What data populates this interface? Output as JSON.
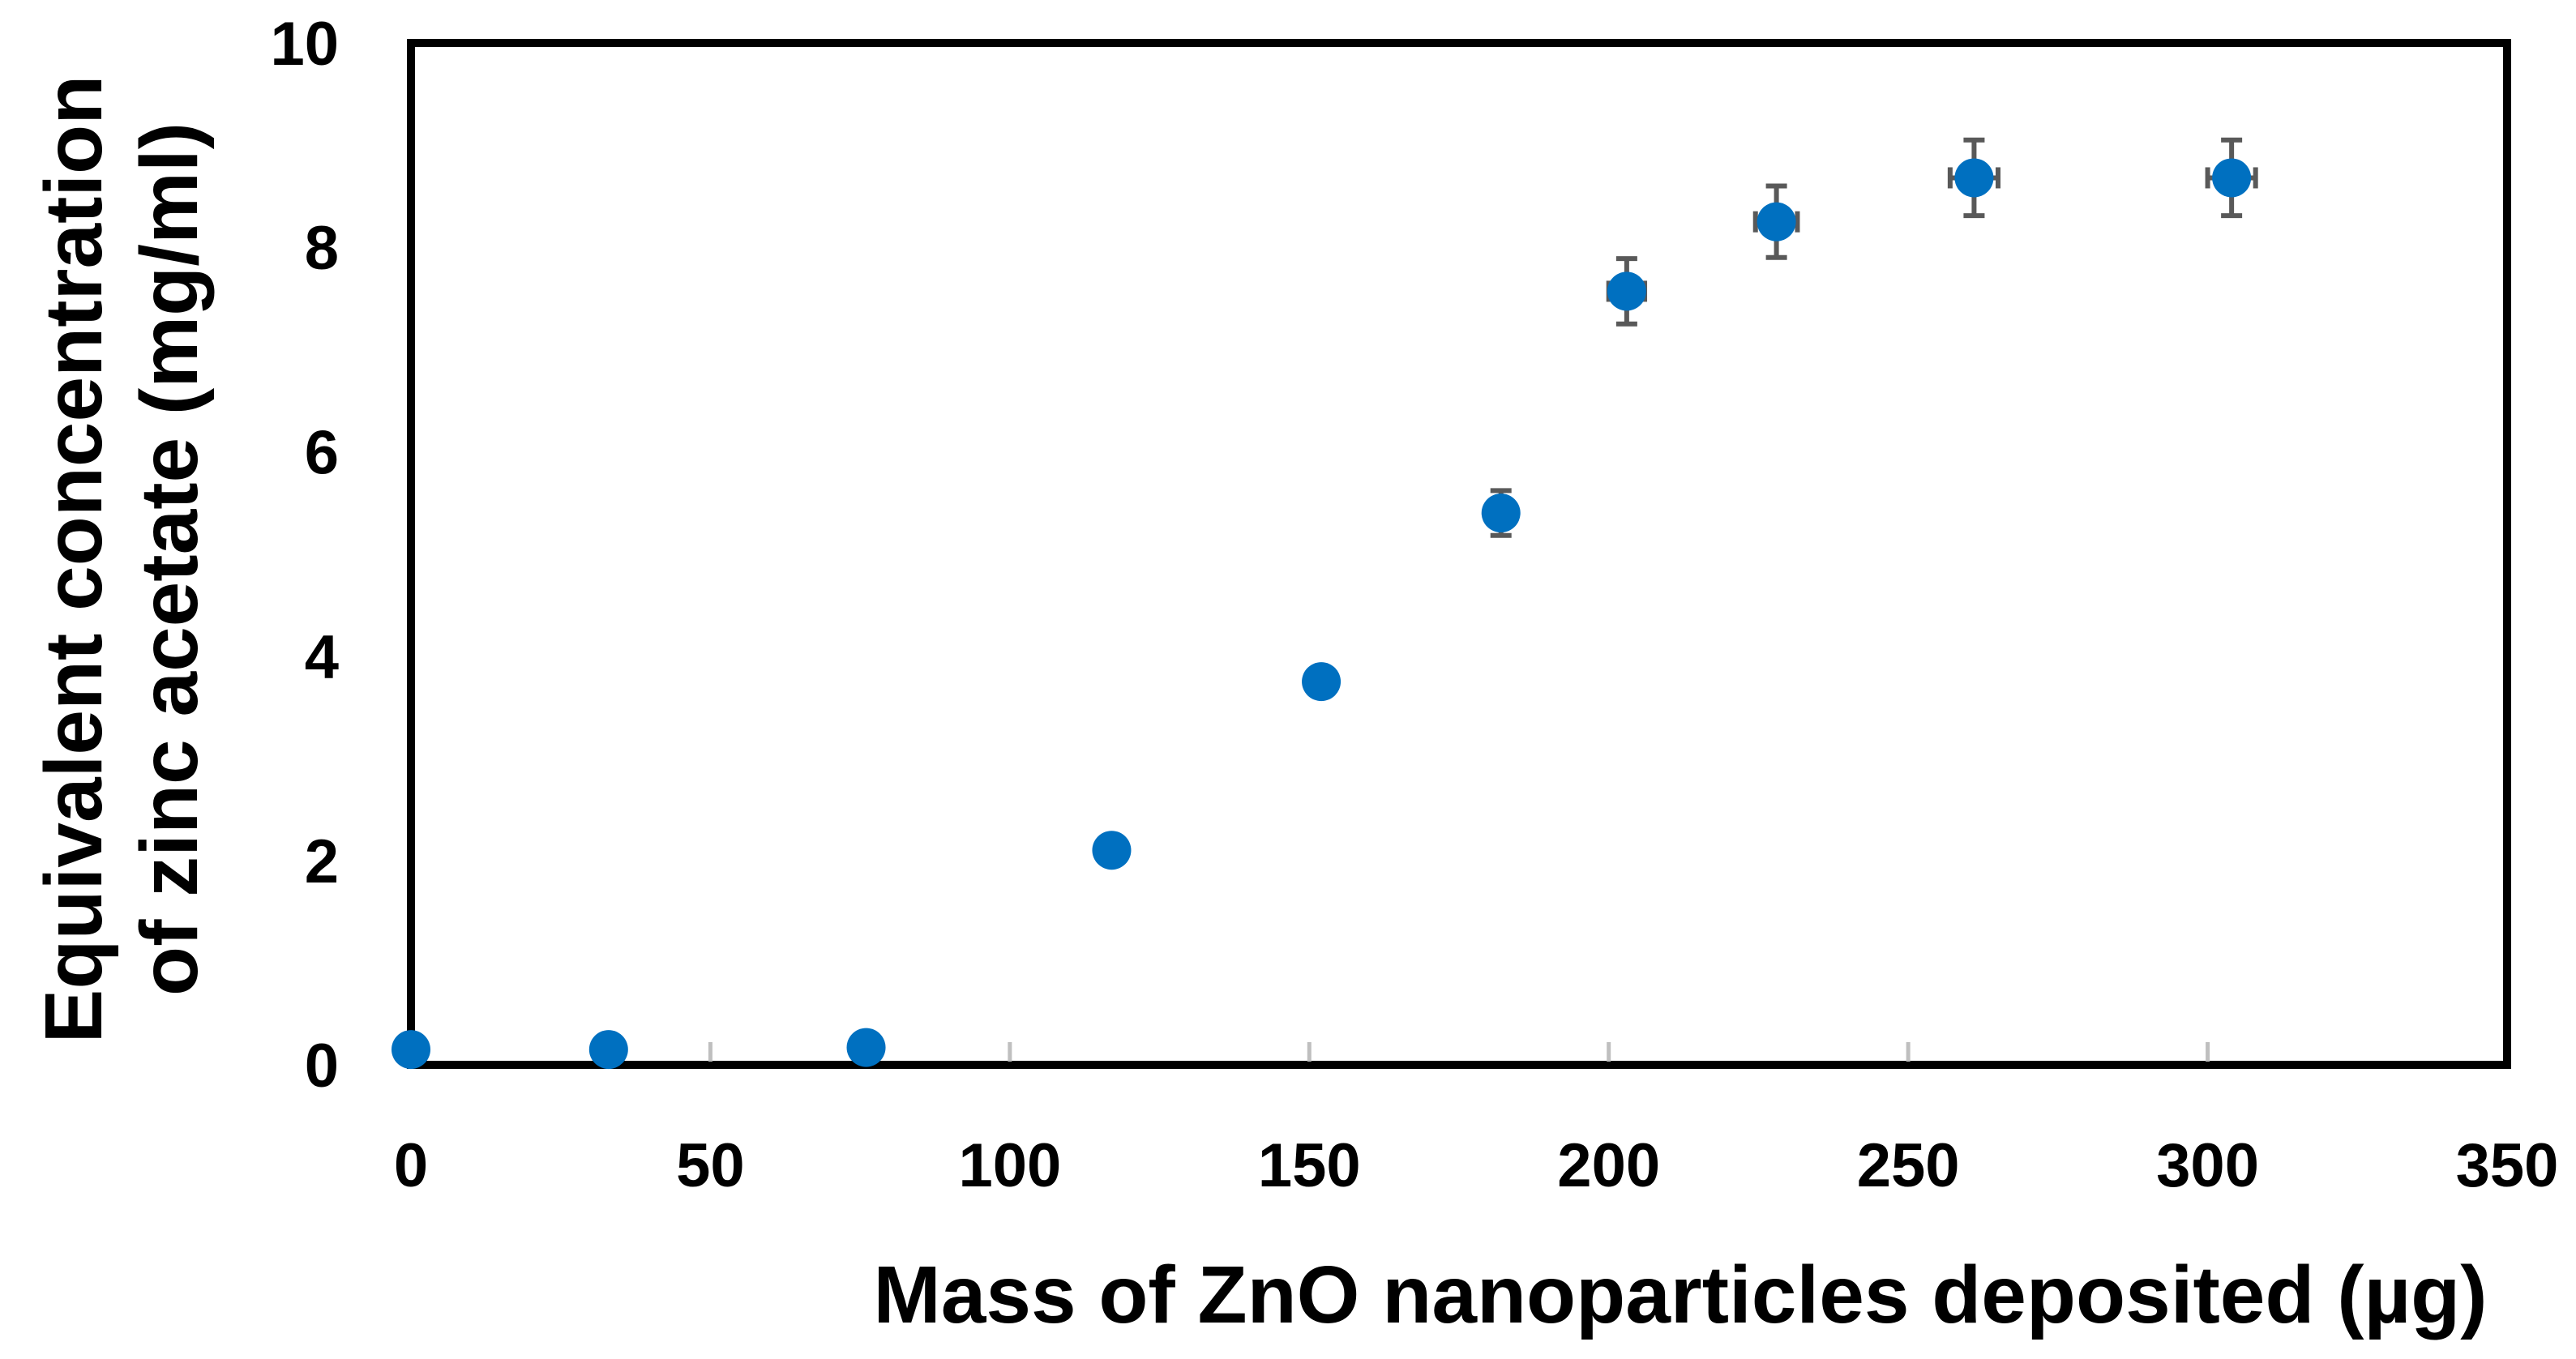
{
  "chart_data": {
    "type": "scatter",
    "title": "",
    "xlabel": "Mass of ZnO nanoparticles deposited (µg)",
    "ylabel_lines": [
      "Equivalent concentration",
      "of zinc acetate (mg/ml)"
    ],
    "xlim": [
      0,
      350
    ],
    "ylim": [
      0,
      10
    ],
    "x_ticks": [
      0,
      50,
      100,
      150,
      200,
      250,
      300,
      350
    ],
    "y_ticks": [
      0,
      2,
      4,
      6,
      8,
      10
    ],
    "x_tick_labels": [
      "0",
      "50",
      "100",
      "150",
      "200",
      "250",
      "300",
      "350"
    ],
    "y_tick_labels": [
      "0",
      "2",
      "4",
      "6",
      "8",
      "10"
    ],
    "grid": false,
    "marker_color": "#0070C0",
    "errorbar_color": "#595959",
    "series": [
      {
        "name": "Equivalent concentration",
        "points": [
          {
            "x": 0,
            "y": 0.15,
            "xerr": 0,
            "yerr": 0
          },
          {
            "x": 33,
            "y": 0.15,
            "xerr": 0,
            "yerr": 0
          },
          {
            "x": 76,
            "y": 0.17,
            "xerr": 0,
            "yerr": 0
          },
          {
            "x": 117,
            "y": 2.1,
            "xerr": 0,
            "yerr": 0
          },
          {
            "x": 152,
            "y": 3.75,
            "xerr": 0,
            "yerr": 0.12
          },
          {
            "x": 182,
            "y": 5.4,
            "xerr": 2,
            "yerr": 0.22
          },
          {
            "x": 203,
            "y": 7.57,
            "xerr": 3,
            "yerr": 0.32
          },
          {
            "x": 228,
            "y": 8.25,
            "xerr": 3.5,
            "yerr": 0.35
          },
          {
            "x": 261,
            "y": 8.68,
            "xerr": 4,
            "yerr": 0.37
          },
          {
            "x": 304,
            "y": 8.68,
            "xerr": 4,
            "yerr": 0.37
          }
        ]
      }
    ]
  }
}
